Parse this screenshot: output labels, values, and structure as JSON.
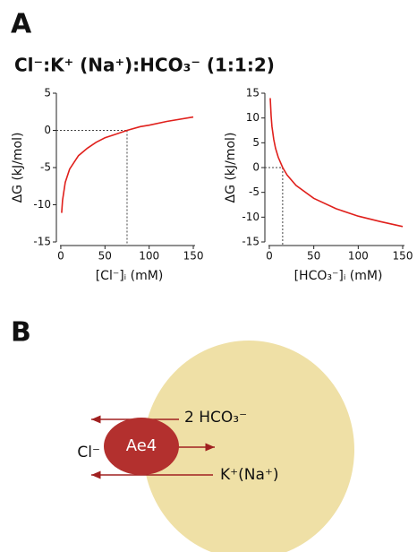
{
  "panel_a": "A",
  "panel_b": "B",
  "title": "Cl⁻:K⁺ (Na⁺):HCO₃⁻  (1:1:2)",
  "chart_data": [
    {
      "type": "line",
      "x_label": "[Cl⁻]ᵢ (mM)",
      "y_label": "ΔG (kJ/mol)",
      "color": "#e0201c",
      "x": [
        1,
        2,
        5,
        10,
        20,
        30,
        40,
        50,
        60,
        75,
        90,
        100,
        120,
        150
      ],
      "values": [
        -11.1,
        -9.4,
        -7.0,
        -5.2,
        -3.4,
        -2.4,
        -1.6,
        -1.0,
        -0.6,
        0,
        0.5,
        0.7,
        1.2,
        1.8
      ],
      "xlim": [
        -5,
        152
      ],
      "xticks": [
        0,
        50,
        100,
        150
      ],
      "ylim": [
        -15,
        5
      ],
      "yticks": [
        -15,
        -10,
        -5,
        0,
        5
      ],
      "ref_x": 75,
      "ref_y": 0
    },
    {
      "type": "line",
      "x_label": "[HCO₃⁻]ᵢ (mM)",
      "y_label": "ΔG (kJ/mol)",
      "color": "#e0201c",
      "x": [
        1,
        2,
        3,
        5,
        7,
        10,
        15,
        20,
        30,
        50,
        75,
        100,
        125,
        150
      ],
      "values": [
        14.0,
        10.4,
        8.3,
        5.7,
        3.9,
        2.1,
        0,
        -1.5,
        -3.6,
        -6.2,
        -8.3,
        -9.8,
        -10.9,
        -11.9
      ],
      "xlim": [
        -5,
        152
      ],
      "xticks": [
        0,
        50,
        100,
        150
      ],
      "ylim": [
        -15,
        15
      ],
      "yticks": [
        -15,
        -10,
        -5,
        0,
        5,
        10,
        15
      ],
      "ref_x": 15,
      "ref_y": 0
    }
  ],
  "diagram": {
    "transporter": "Ae4",
    "left_ion": "Cl⁻",
    "top_ion": "2 HCO₃⁻",
    "bottom_ion": "K⁺(Na⁺)"
  }
}
